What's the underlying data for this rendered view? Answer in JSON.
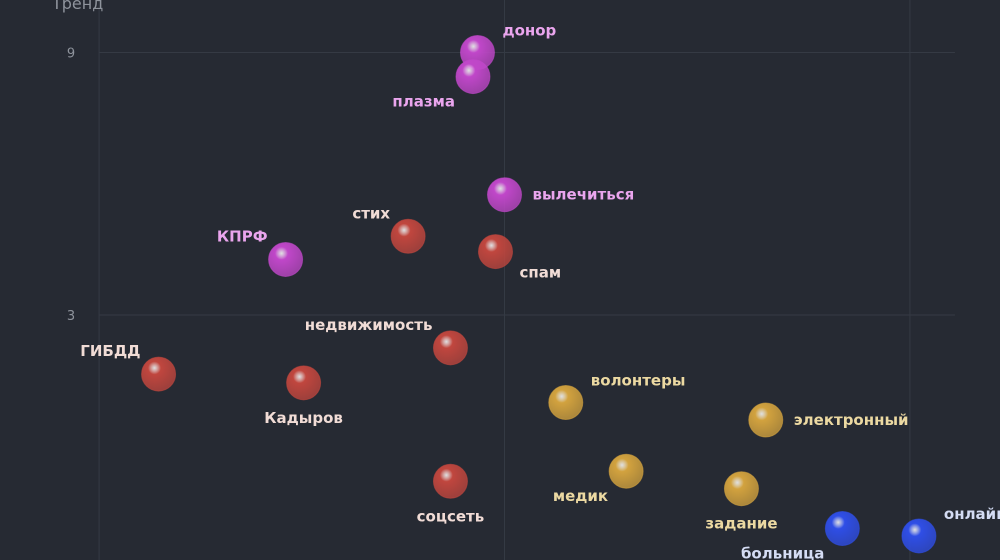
{
  "chart_data": {
    "type": "scatter",
    "title": "",
    "xlabel": "",
    "ylabel": "Тренд",
    "y_ticks": [
      "3",
      "9"
    ],
    "y_tick_values": [
      3,
      9
    ],
    "ylim": [
      -2.6,
      10.2
    ],
    "xlim": [
      -0.11,
      1.0
    ],
    "grid": true,
    "colors": {
      "red": "#c0463e",
      "magenta": "#c047c9",
      "gold": "#d2a23e",
      "blue": "#2f4ee6"
    },
    "label_colors": {
      "red": "#f1dcd6",
      "magenta": "#eaa5ee",
      "gold": "#ecd9a2",
      "blue": "#d4dcf4"
    },
    "points": [
      {
        "label": "донор",
        "x": 0.42,
        "y": 9.0,
        "group": "magenta",
        "label_pos": "upper-right"
      },
      {
        "label": "плазма",
        "x": 0.415,
        "y": 8.45,
        "group": "magenta",
        "label_pos": "lower-left"
      },
      {
        "label": "вылечиться",
        "x": 0.45,
        "y": 5.75,
        "group": "magenta",
        "label_pos": "right"
      },
      {
        "label": "КПРФ",
        "x": 0.207,
        "y": 4.27,
        "group": "magenta",
        "label_pos": "upper-left"
      },
      {
        "label": "стих",
        "x": 0.343,
        "y": 4.8,
        "group": "red",
        "label_pos": "upper-left"
      },
      {
        "label": "спам",
        "x": 0.44,
        "y": 4.45,
        "group": "red",
        "label_pos": "lower-right"
      },
      {
        "label": "недвижимость",
        "x": 0.39,
        "y": 2.25,
        "group": "red",
        "label_pos": "upper-left"
      },
      {
        "label": "ГИБДД",
        "x": 0.066,
        "y": 1.65,
        "group": "red",
        "label_pos": "upper-left"
      },
      {
        "label": "Кадыров",
        "x": 0.227,
        "y": 1.45,
        "group": "red",
        "label_pos": "below"
      },
      {
        "label": "соцсеть",
        "x": 0.39,
        "y": -0.8,
        "group": "red",
        "label_pos": "below"
      },
      {
        "label": "волонтеры",
        "x": 0.518,
        "y": 1.0,
        "group": "gold",
        "label_pos": "upper-right"
      },
      {
        "label": "электронный",
        "x": 0.74,
        "y": 0.6,
        "group": "gold",
        "label_pos": "right"
      },
      {
        "label": "медик",
        "x": 0.585,
        "y": -0.57,
        "group": "gold",
        "label_pos": "lower-left"
      },
      {
        "label": "задание",
        "x": 0.713,
        "y": -0.97,
        "group": "gold",
        "label_pos": "below"
      },
      {
        "label": "больница",
        "x": 0.825,
        "y": -1.88,
        "group": "blue",
        "label_pos": "lower-left"
      },
      {
        "label": "онлайн",
        "x": 0.91,
        "y": -2.05,
        "group": "blue",
        "label_pos": "upper-right"
      }
    ]
  }
}
